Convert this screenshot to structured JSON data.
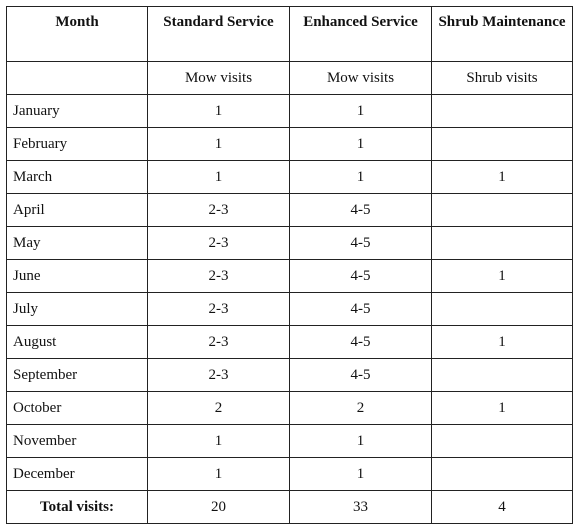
{
  "headers": {
    "month": "Month",
    "standard": "Standard Service",
    "enhanced": "Enhanced Service",
    "shrub": "Shrub Maintenance"
  },
  "subheaders": {
    "month": "",
    "standard": "Mow visits",
    "enhanced": "Mow visits",
    "shrub": "Shrub visits"
  },
  "rows": [
    {
      "month": "January",
      "standard": "1",
      "enhanced": "1",
      "shrub": ""
    },
    {
      "month": "February",
      "standard": "1",
      "enhanced": "1",
      "shrub": ""
    },
    {
      "month": "March",
      "standard": "1",
      "enhanced": "1",
      "shrub": "1"
    },
    {
      "month": "April",
      "standard": "2-3",
      "enhanced": "4-5",
      "shrub": ""
    },
    {
      "month": "May",
      "standard": "2-3",
      "enhanced": "4-5",
      "shrub": ""
    },
    {
      "month": "June",
      "standard": "2-3",
      "enhanced": "4-5",
      "shrub": "1"
    },
    {
      "month": "July",
      "standard": "2-3",
      "enhanced": "4-5",
      "shrub": ""
    },
    {
      "month": "August",
      "standard": "2-3",
      "enhanced": "4-5",
      "shrub": "1"
    },
    {
      "month": "September",
      "standard": "2-3",
      "enhanced": "4-5",
      "shrub": ""
    },
    {
      "month": "October",
      "standard": "2",
      "enhanced": "2",
      "shrub": "1"
    },
    {
      "month": "November",
      "standard": "1",
      "enhanced": "1",
      "shrub": ""
    },
    {
      "month": "December",
      "standard": "1",
      "enhanced": "1",
      "shrub": ""
    }
  ],
  "totals": {
    "label": "Total visits:",
    "standard": "20",
    "enhanced": "33",
    "shrub": "4"
  }
}
